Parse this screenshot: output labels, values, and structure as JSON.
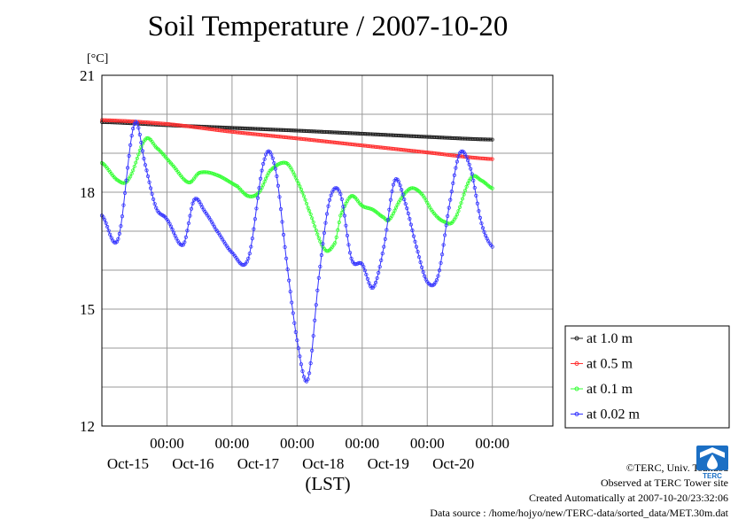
{
  "chart_data": {
    "type": "line",
    "title": "Soil Temperature / 2007-10-20",
    "ylabel": "[°C]",
    "xlabel": "(LST)",
    "ylim": [
      12,
      21
    ],
    "yticks": [
      12,
      15,
      18,
      21
    ],
    "xlim_hours": [
      0,
      144
    ],
    "x_ticks": [
      {
        "hour": 24,
        "time": "00:00",
        "date": "Oct-15"
      },
      {
        "hour": 48,
        "time": "00:00",
        "date": "Oct-16"
      },
      {
        "hour": 72,
        "time": "00:00",
        "date": "Oct-17"
      },
      {
        "hour": 96,
        "time": "00:00",
        "date": "Oct-18"
      },
      {
        "hour": 120,
        "time": "00:00",
        "date": "Oct-19"
      },
      {
        "hour": 144,
        "time": "00:00",
        "date": "Oct-20"
      }
    ],
    "grid": true,
    "legend_position": "right",
    "series": [
      {
        "name": "at 1.0 m",
        "color": "#222222",
        "x": [
          0,
          24,
          48,
          72,
          96,
          120,
          144
        ],
        "y": [
          19.8,
          19.72,
          19.65,
          19.58,
          19.5,
          19.42,
          19.35
        ]
      },
      {
        "name": "at 0.5 m",
        "color": "#ff3333",
        "x": [
          0,
          24,
          48,
          72,
          96,
          120,
          144
        ],
        "y": [
          19.85,
          19.75,
          19.55,
          19.38,
          19.2,
          19.02,
          18.85
        ]
      },
      {
        "name": "at 0.1 m",
        "color": "#33ff33",
        "x": [
          0,
          6,
          10,
          16,
          20,
          26,
          32,
          36,
          42,
          50,
          54,
          58,
          62,
          68,
          72,
          76,
          82,
          86,
          88,
          92,
          96,
          100,
          104,
          106,
          110,
          114,
          118,
          122,
          126,
          130,
          136,
          140,
          144
        ],
        "y": [
          18.75,
          18.3,
          18.35,
          19.35,
          19.15,
          18.7,
          18.25,
          18.5,
          18.45,
          18.15,
          17.9,
          18.0,
          18.55,
          18.75,
          18.3,
          17.6,
          16.55,
          16.7,
          17.4,
          17.9,
          17.65,
          17.55,
          17.35,
          17.3,
          17.8,
          18.1,
          17.95,
          17.5,
          17.25,
          17.3,
          18.35,
          18.3,
          18.1
        ]
      },
      {
        "name": "at 0.02 m",
        "color": "#3333ff",
        "x": [
          0,
          6,
          12,
          16,
          20,
          24,
          30,
          34,
          38,
          42,
          48,
          54,
          60,
          64,
          68,
          72,
          76,
          80,
          84,
          88,
          92,
          96,
          100,
          104,
          108,
          112,
          116,
          120,
          124,
          128,
          132,
          136,
          140,
          144
        ],
        "y": [
          17.4,
          16.8,
          19.75,
          18.7,
          17.6,
          17.3,
          16.65,
          17.8,
          17.5,
          17.05,
          16.45,
          16.3,
          18.85,
          18.6,
          16.3,
          14.2,
          13.2,
          15.8,
          17.8,
          17.95,
          16.3,
          16.15,
          15.55,
          16.6,
          18.3,
          17.7,
          16.6,
          15.7,
          15.85,
          17.6,
          19.0,
          18.6,
          17.2,
          16.6
        ]
      }
    ]
  },
  "footer": {
    "copyright": "©TERC, Univ. Tsukuba",
    "observed": "Observed at TERC Tower site",
    "created": "Created Automatically at 2007-10-20/23:32:06",
    "source": "Data source : /home/hojyo/new/TERC-data/sorted_data/MET.30m.dat"
  },
  "logo": {
    "text": "TERC",
    "color": "#1b6fc4"
  }
}
